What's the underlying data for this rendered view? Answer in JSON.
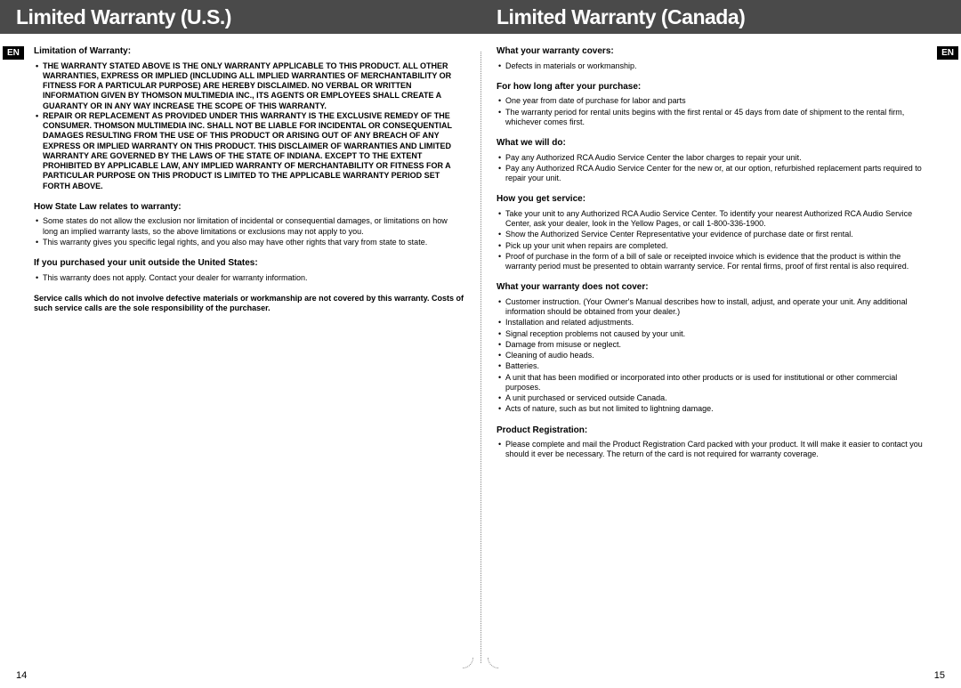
{
  "left": {
    "header": "Limited Warranty (U.S.)",
    "lang_tab": "EN",
    "page_number": "14",
    "sections": {
      "s1_heading": "Limitation of Warranty:",
      "s1_block1": "THE WARRANTY STATED ABOVE IS THE ONLY WARRANTY APPLICABLE TO THIS PRODUCT.  ALL OTHER WARRANTIES, EXPRESS OR IMPLIED (INCLUDING ALL IMPLIED WARRANTIES OF MERCHANTABILITY OR FITNESS FOR A PARTICULAR PURPOSE) ARE HEREBY DISCLAIMED.  NO VERBAL OR WRITTEN INFORMATION GIVEN BY THOMSON MULTIMEDIA INC., ITS AGENTS OR EMPLOYEES SHALL CREATE A GUARANTY OR IN ANY WAY INCREASE THE SCOPE OF THIS WARRANTY.",
      "s1_block2": "REPAIR OR REPLACEMENT AS PROVIDED UNDER THIS WARRANTY IS THE EXCLUSIVE REMEDY OF THE CONSUMER.  THOMSON MULTIMEDIA INC. SHALL NOT BE LIABLE FOR INCIDENTAL OR CONSEQUENTIAL DAMAGES RESULTING FROM THE USE OF THIS PRODUCT OR ARISING OUT OF ANY BREACH OF ANY EXPRESS OR IMPLIED WARRANTY ON THIS PRODUCT.  THIS DISCLAIMER OF WARRANTIES AND LIMITED WARRANTY ARE GOVERNED BY THE LAWS OF THE STATE OF INDIANA.  EXCEPT TO THE EXTENT PROHIBITED BY APPLICABLE LAW, ANY IMPLIED WARRANTY OF MERCHANTABILITY OR FITNESS FOR A PARTICULAR PURPOSE ON THIS PRODUCT IS LIMITED TO THE APPLICABLE WARRANTY PERIOD SET FORTH ABOVE.",
      "s2_heading": "How State Law relates to warranty:",
      "s2_b1": "Some states do not allow the exclusion nor limitation of incidental or consequential damages, or limitations on how long an implied warranty lasts, so the above limitations or exclusions may not apply to you.",
      "s2_b2": "This warranty gives you specific legal rights, and you also may have other rights that vary from state to state.",
      "s3_heading": "If you purchased your unit outside the United States:",
      "s3_b1": "This warranty does not apply.  Contact your dealer for warranty information.",
      "s4_text": "Service calls which do not involve defective materials or workmanship are not covered by this warranty.  Costs of such service calls are the sole responsibility of the purchaser."
    }
  },
  "right": {
    "header": "Limited Warranty (Canada)",
    "lang_tab": "EN",
    "page_number": "15",
    "sections": {
      "s1_heading": "What your warranty covers:",
      "s1_b1": "Defects in materials or workmanship.",
      "s2_heading": "For how long after your purchase:",
      "s2_b1": "One year from date of purchase for labor and parts",
      "s2_b2": "The warranty period for rental units begins with the first rental or 45 days from date of shipment to the rental firm, whichever comes first.",
      "s3_heading": "What we will do:",
      "s3_b1": "Pay any Authorized RCA Audio Service Center the labor charges to repair your unit.",
      "s3_b2": "Pay any Authorized RCA Audio Service Center for the new or, at our option, refurbished replacement parts required to repair your unit.",
      "s4_heading": "How you get service:",
      "s4_b1": "Take your unit to any Authorized RCA Audio Service Center.  To identify your nearest Authorized RCA Audio Service Center, ask your dealer, look in the Yellow Pages, or call 1-800-336-1900.",
      "s4_b2": "Show the Authorized Service Center Representative your evidence of purchase date or first rental.",
      "s4_b3": "Pick up your unit when repairs are completed.",
      "s4_b4": "Proof of purchase in the form of a bill of sale or receipted invoice which is evidence that the product is within the warranty period must be presented to obtain warranty service.  For rental firms, proof of first rental is also required.",
      "s5_heading": "What your warranty does not cover:",
      "s5_b1": "Customer instruction.  (Your Owner's Manual describes how to install, adjust, and operate your unit.  Any additional information should be obtained from your dealer.)",
      "s5_b2": "Installation and related adjustments.",
      "s5_b3": "Signal reception problems not caused by your unit.",
      "s5_b4": "Damage from misuse or neglect.",
      "s5_b5": "Cleaning of audio heads.",
      "s5_b6": "Batteries.",
      "s5_b7": "A unit that has been modified or incorporated into other products or is used for institutional or other commercial purposes.",
      "s5_b8": "A unit purchased or serviced outside Canada.",
      "s5_b9": "Acts of nature, such as but not limited to lightning damage.",
      "s6_heading": "Product Registration:",
      "s6_b1": "Please complete and mail the Product Registration Card packed with your product.  It will make it easier to contact you should it ever be necessary.  The return of the card is not required for warranty coverage."
    }
  },
  "colors": {
    "header_bg": "#4a4a4a",
    "header_fg": "#ffffff",
    "tab_bg": "#000000",
    "text": "#000000",
    "divider": "#888888"
  }
}
